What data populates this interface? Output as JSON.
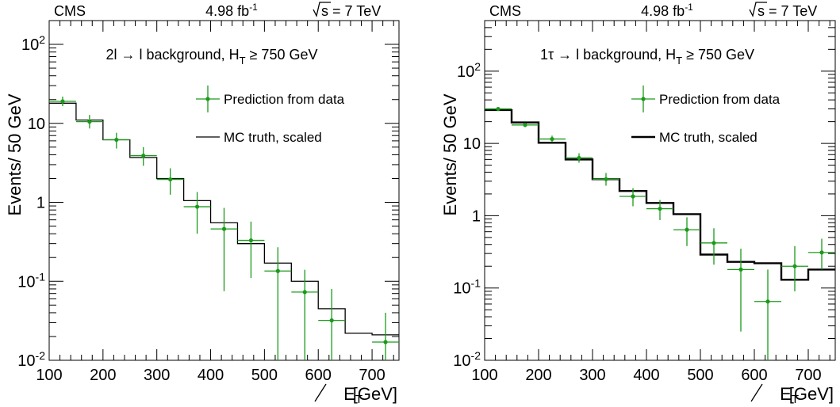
{
  "chart_data": [
    {
      "type": "line",
      "header_left": "CMS",
      "header_center": "4.98 fb",
      "header_center_sup": "-1",
      "header_right": "s = 7 TeV",
      "annotation": "2l → l background, H",
      "annotation_sub": "T",
      "annotation_tail": " ≥ 750 GeV",
      "xlabel": "E",
      "xlabel_sub": "T",
      "xlabel_unit": " [GeV]",
      "ylabel": "Events/ 50 GeV",
      "xlim": [
        100,
        750
      ],
      "ylim": [
        0.01,
        200
      ],
      "log_y": true,
      "x_ticks": [
        "100",
        "200",
        "300",
        "400",
        "500",
        "600",
        "700"
      ],
      "y_ticks": [
        {
          "value": 0.01,
          "base": "10",
          "exp": "-2"
        },
        {
          "value": 0.1,
          "base": "10",
          "exp": "-1"
        },
        {
          "value": 1,
          "base": "1",
          "exp": ""
        },
        {
          "value": 10,
          "base": "10",
          "exp": ""
        },
        {
          "value": 100,
          "base": "10",
          "exp": "2"
        }
      ],
      "series": [
        {
          "name": "Prediction from data",
          "color": "#1a9a1a",
          "style": "points",
          "x": [
            125,
            175,
            225,
            275,
            325,
            375,
            425,
            475,
            525,
            575,
            625,
            725
          ],
          "y": [
            19.0,
            10.5,
            6.2,
            3.9,
            1.95,
            0.88,
            0.46,
            0.33,
            0.135,
            0.073,
            0.032,
            0.017
          ],
          "y_low": [
            16.5,
            8.6,
            4.8,
            2.9,
            1.25,
            0.4,
            0.075,
            0.11,
            0.01,
            0.01,
            0.01,
            0.01
          ],
          "y_high": [
            21.8,
            12.8,
            7.6,
            5.0,
            2.7,
            1.35,
            0.85,
            0.57,
            0.27,
            0.14,
            0.08,
            0.04
          ],
          "x_halfwidth": 25
        },
        {
          "name": "MC truth, scaled",
          "color": "#000000",
          "style": "step",
          "edges": [
            100,
            150,
            200,
            250,
            300,
            350,
            400,
            450,
            500,
            550,
            600,
            650,
            700,
            750
          ],
          "values": [
            18.0,
            11.0,
            6.2,
            3.7,
            2.0,
            1.05,
            0.55,
            0.3,
            0.17,
            0.1,
            0.045,
            0.022,
            0.021
          ]
        }
      ]
    },
    {
      "type": "line",
      "header_left": "CMS",
      "header_center": "4.98 fb",
      "header_center_sup": "-1",
      "header_right": "s = 7 TeV",
      "annotation": "1τ → l background, H",
      "annotation_sub": "T",
      "annotation_tail": " ≥ 750 GeV",
      "xlabel": "E",
      "xlabel_sub": "T",
      "xlabel_unit": " [GeV]",
      "ylabel": "Events/ 50 GeV",
      "xlim": [
        100,
        750
      ],
      "ylim": [
        0.01,
        500
      ],
      "log_y": true,
      "x_ticks": [
        "100",
        "200",
        "300",
        "400",
        "500",
        "600",
        "700"
      ],
      "y_ticks": [
        {
          "value": 0.01,
          "base": "10",
          "exp": "-2"
        },
        {
          "value": 0.1,
          "base": "10",
          "exp": "-1"
        },
        {
          "value": 1,
          "base": "1",
          "exp": ""
        },
        {
          "value": 10,
          "base": "10",
          "exp": ""
        },
        {
          "value": 100,
          "base": "10",
          "exp": "2"
        }
      ],
      "series": [
        {
          "name": "Prediction from data",
          "color": "#1a9a1a",
          "style": "points",
          "x": [
            125,
            175,
            225,
            275,
            325,
            375,
            425,
            475,
            525,
            575,
            625,
            675,
            725
          ],
          "y": [
            30.0,
            18.0,
            11.5,
            6.3,
            3.2,
            1.85,
            1.25,
            0.64,
            0.42,
            0.18,
            0.065,
            0.2,
            0.31
          ],
          "y_low": [
            28.5,
            16.8,
            10.4,
            5.4,
            2.6,
            1.35,
            0.87,
            0.38,
            0.21,
            0.025,
            0.01,
            0.09,
            0.18
          ],
          "y_high": [
            31.8,
            19.3,
            12.8,
            7.3,
            3.9,
            2.4,
            1.65,
            0.95,
            0.67,
            0.35,
            0.18,
            0.38,
            0.48
          ],
          "x_halfwidth": 25
        },
        {
          "name": "MC truth, scaled",
          "color": "#000000",
          "style": "step",
          "edges": [
            100,
            150,
            200,
            250,
            300,
            350,
            400,
            450,
            500,
            550,
            600,
            650,
            700,
            750
          ],
          "values": [
            29.0,
            19.5,
            10.2,
            6.0,
            3.2,
            2.2,
            1.5,
            1.05,
            0.29,
            0.23,
            0.22,
            0.13,
            0.18
          ]
        }
      ]
    }
  ]
}
